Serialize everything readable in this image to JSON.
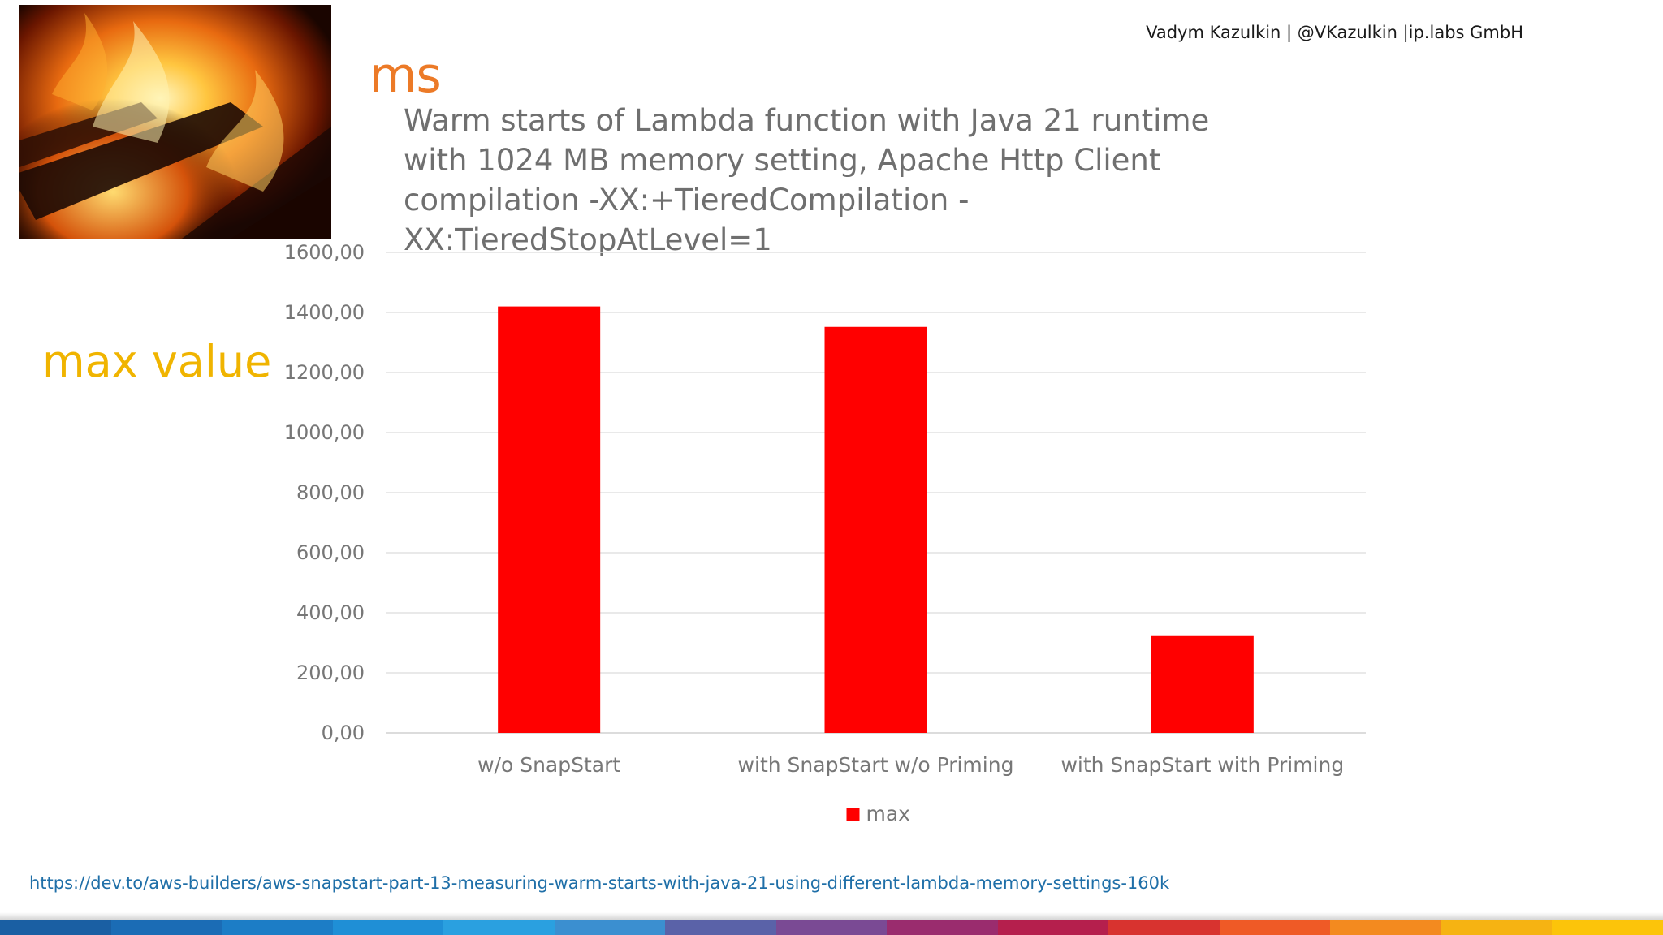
{
  "header": {
    "author_line": "Vadym Kazulkin | @VKazulkin |ip.labs GmbH"
  },
  "slide": {
    "unit_heading": "ms",
    "side_label": "max value",
    "source_link": "https://dev.to/aws-builders/aws-snapstart-part-13-measuring-warm-starts-with-java-21-using-different-lambda-memory-settings-160k"
  },
  "chart_data": {
    "type": "bar",
    "title": "Warm starts of Lambda function with Java 21 runtime  with 1024 MB memory setting, Apache Http Client compilation -XX:+TieredCompilation -XX:TieredStopAtLevel=1",
    "categories": [
      "w/o SnapStart",
      "with SnapStart w/o Priming",
      "with SnapStart with Priming"
    ],
    "series": [
      {
        "name": "max",
        "values": [
          1420,
          1352,
          325
        ],
        "color": "#ff0000"
      }
    ],
    "ylim": [
      0,
      1600
    ],
    "yticks": [
      "0,00",
      "200,00",
      "400,00",
      "600,00",
      "800,00",
      "1000,00",
      "1200,00",
      "1400,00",
      "1600,00"
    ],
    "ytick_values": [
      0,
      200,
      400,
      600,
      800,
      1000,
      1200,
      1400,
      1600
    ],
    "grid": true,
    "legend": "bottom-center"
  },
  "stripe_colors": [
    "#1a5fa3",
    "#1b6cb5",
    "#1c7dc6",
    "#1f8fd6",
    "#2aa0e0",
    "#3b8fd0",
    "#5a62a8",
    "#7a4a94",
    "#9a2c6e",
    "#b51f4d",
    "#d8332f",
    "#ef5a26",
    "#f38a1f",
    "#f6b312",
    "#fcc40a"
  ]
}
